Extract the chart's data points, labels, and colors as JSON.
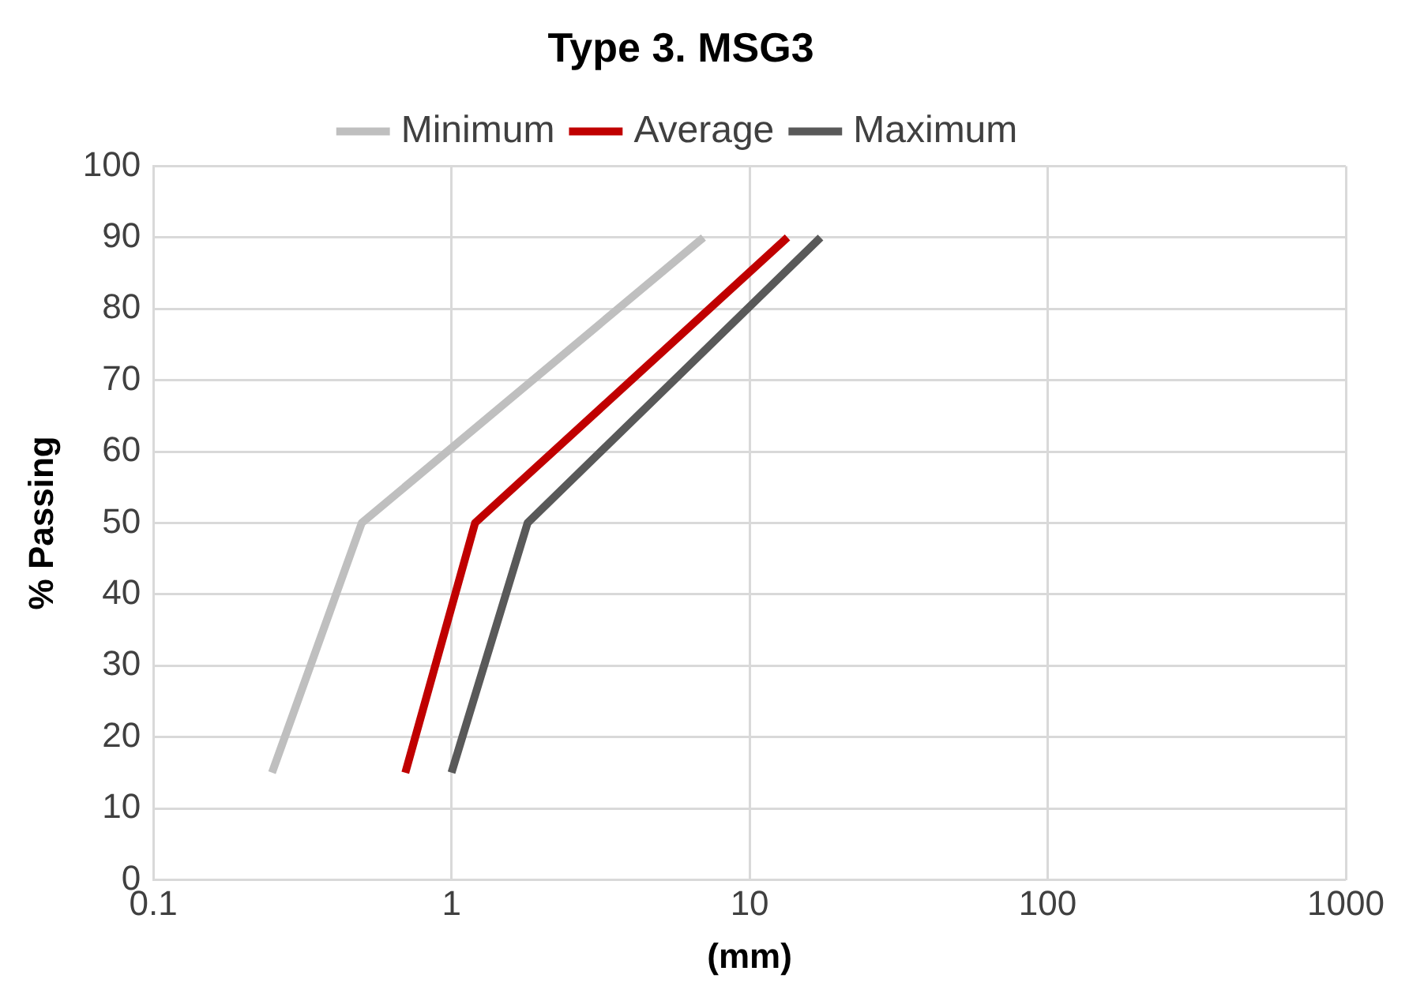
{
  "chart_data": {
    "type": "line",
    "title": "Type 3. MSG3",
    "xlabel": "(mm)",
    "ylabel": "% Passing",
    "series": [
      {
        "name": "Minimum",
        "color": "#bfbfbf",
        "x": [
          0.25,
          0.5,
          7
        ],
        "values": [
          15,
          50,
          90
        ]
      },
      {
        "name": "Average",
        "color": "#c00000",
        "x": [
          0.7,
          1.2,
          13.4
        ],
        "values": [
          15,
          50,
          90
        ]
      },
      {
        "name": "Maximum",
        "color": "#595959",
        "x": [
          1,
          1.8,
          17.3
        ],
        "values": [
          15,
          50,
          90
        ]
      }
    ],
    "log": "x",
    "xlim": [
      0.1,
      1000
    ],
    "xticks": [
      0.1,
      1,
      10,
      100,
      1000
    ],
    "ylim": [
      0,
      100
    ],
    "yticks": [
      0,
      10,
      20,
      30,
      40,
      50,
      60,
      70,
      80,
      90,
      100
    ],
    "grid": true,
    "legend": "top",
    "marker": "none",
    "line_style": "solid"
  }
}
